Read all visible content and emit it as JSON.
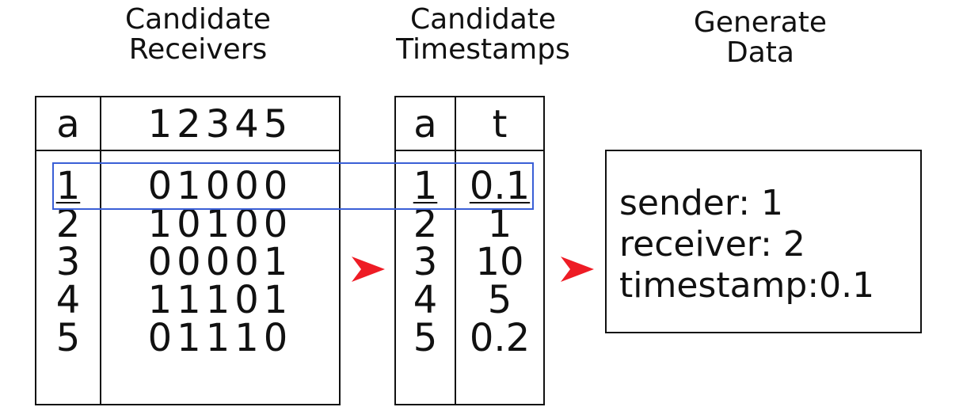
{
  "headings": {
    "receivers": "Candidate\nReceivers",
    "timestamps": "Candidate\nTimestamps",
    "generate": "Generate\nData"
  },
  "receivers_table": {
    "header_a": "a",
    "header_cols": "12345",
    "rows": [
      {
        "a": "1",
        "bits": "01000"
      },
      {
        "a": "2",
        "bits": "10100"
      },
      {
        "a": "3",
        "bits": "00001"
      },
      {
        "a": "4",
        "bits": "11101"
      },
      {
        "a": "5",
        "bits": "01110"
      }
    ]
  },
  "timestamps_table": {
    "header_a": "a",
    "header_t": "t",
    "rows": [
      {
        "a": "1",
        "t": "0.1"
      },
      {
        "a": "2",
        "t": "1"
      },
      {
        "a": "3",
        "t": "10"
      },
      {
        "a": "4",
        "t": "5"
      },
      {
        "a": "5",
        "t": "0.2"
      }
    ]
  },
  "output": {
    "sender": "sender: 1",
    "receiver": "receiver: 2",
    "timestamp": "timestamp:0.1"
  },
  "colors": {
    "highlight": "#3a5fd6",
    "arrow": "#ee1c25"
  }
}
